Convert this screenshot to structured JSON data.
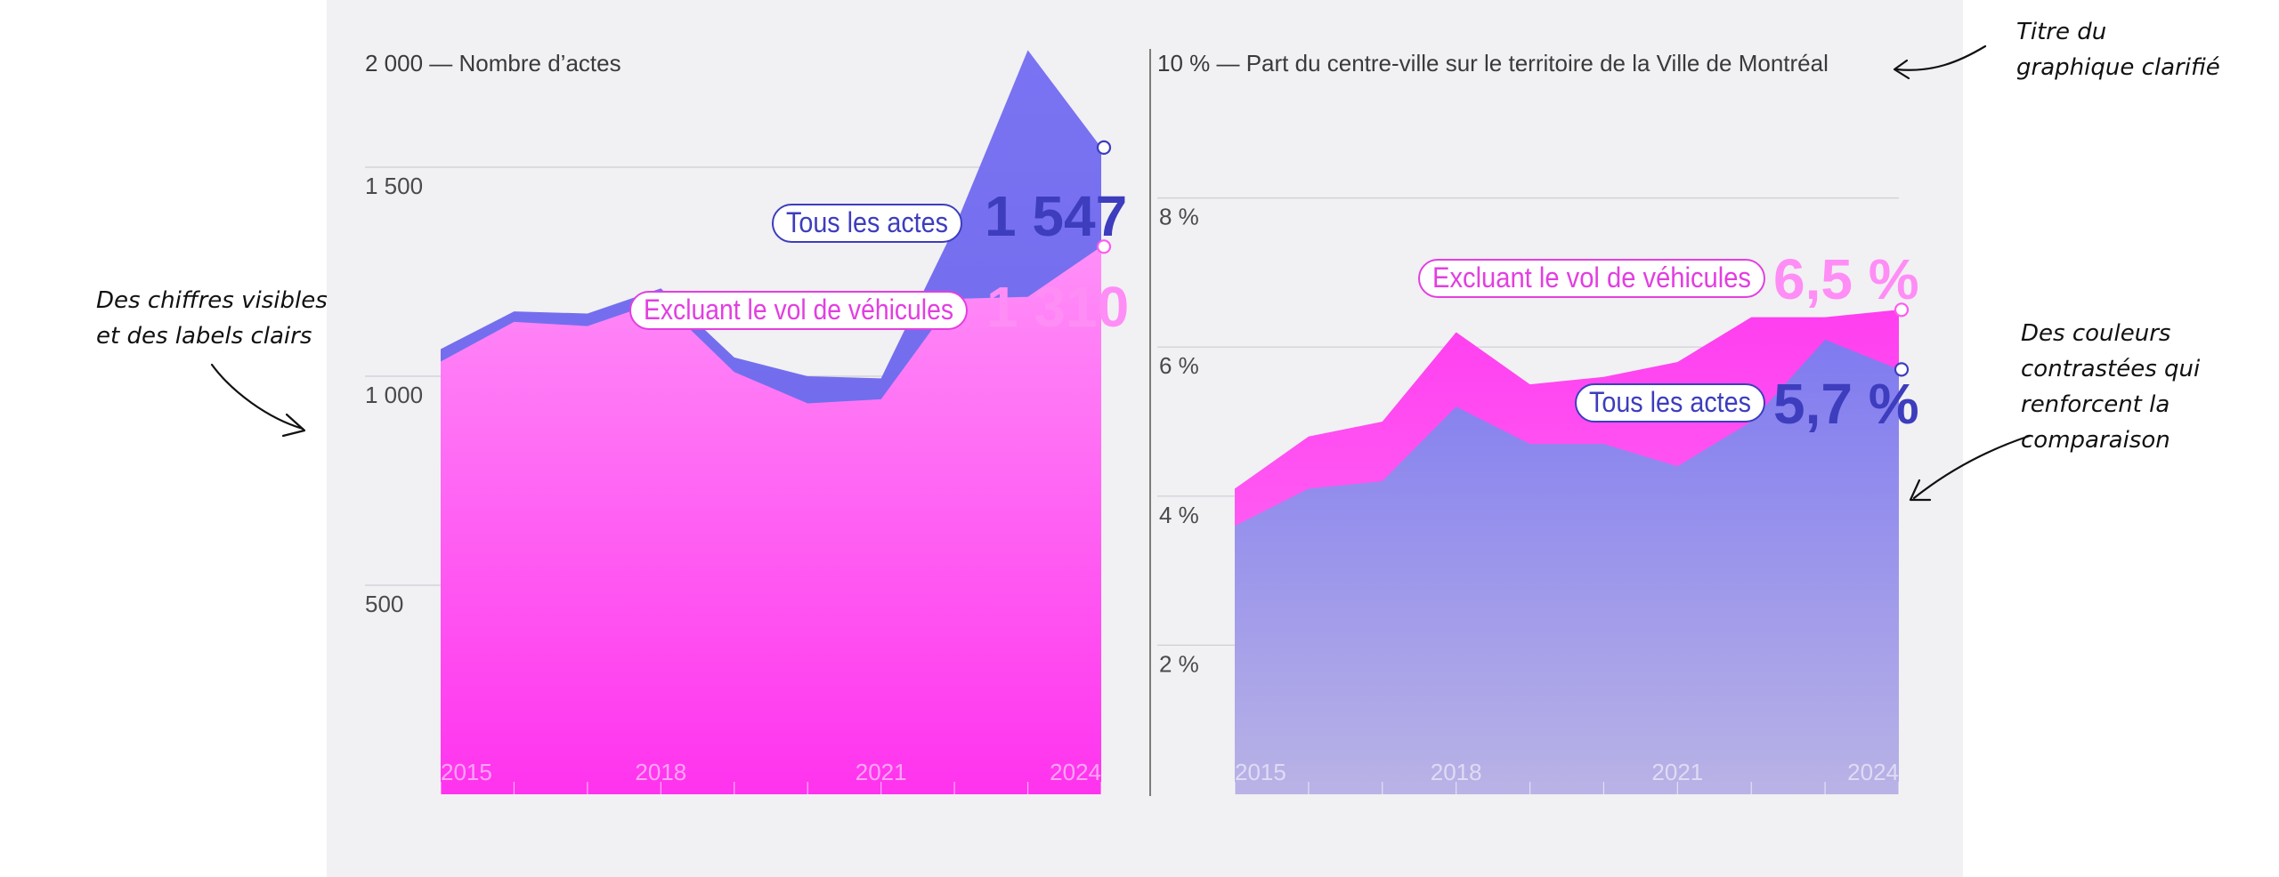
{
  "annotations": {
    "title_note": "Titre du\ngraphique clarifié",
    "labels_note": "Des chiffres visibles\net des labels clairs",
    "colors_note": "Des couleurs\ncontrastées qui\nrenforcent la\ncomparaison"
  },
  "colors": {
    "magenta": "#ff2ff0",
    "magenta_light": "#ff8df6",
    "violet": "#7f78f0",
    "violet_dark": "#3d3dbe",
    "label_pink": "#e23fe0",
    "grid": "#cfcdd6",
    "axis_text": "#4a4a4a"
  },
  "chart_data": [
    {
      "type": "area",
      "title": "2 000 — Nombre d’actes",
      "x": [
        2015,
        2016,
        2017,
        2018,
        2019,
        2020,
        2021,
        2022,
        2023,
        2024
      ],
      "x_tick_labels": [
        "2015",
        "2018",
        "2021",
        "2024"
      ],
      "y_ticks": [
        500,
        1000,
        1500
      ],
      "y_tick_labels": [
        "500",
        "1 000",
        "1 500"
      ],
      "ylim": [
        0,
        2000
      ],
      "grid": true,
      "series": [
        {
          "name": "Tous les actes",
          "values": [
            1065,
            1155,
            1150,
            1210,
            1045,
            1000,
            995,
            1355,
            1780,
            1547
          ],
          "end_label": "1 547"
        },
        {
          "name": "Excluant le vol de véhicules",
          "values": [
            1035,
            1130,
            1120,
            1180,
            1010,
            935,
            945,
            1185,
            1190,
            1310
          ],
          "end_label": "1 310"
        }
      ]
    },
    {
      "type": "area",
      "title": "10 % — Part du centre-ville sur le territoire de la Ville de Montréal",
      "x": [
        2015,
        2016,
        2017,
        2018,
        2019,
        2020,
        2021,
        2022,
        2023,
        2024
      ],
      "x_tick_labels": [
        "2015",
        "2018",
        "2021",
        "2024"
      ],
      "y_ticks": [
        2,
        4,
        6,
        8
      ],
      "y_tick_labels": [
        "2 %",
        "4 %",
        "6 %",
        "8 %"
      ],
      "ylim": [
        0,
        10
      ],
      "grid": true,
      "series": [
        {
          "name": "Excluant le vol de véhicules",
          "values": [
            4.1,
            4.8,
            5.0,
            6.2,
            5.5,
            5.6,
            5.8,
            6.4,
            6.4,
            6.5
          ],
          "end_label": "6,5 %"
        },
        {
          "name": "Tous les actes",
          "values": [
            3.6,
            4.1,
            4.2,
            5.2,
            4.7,
            4.7,
            4.4,
            5.0,
            6.1,
            5.7
          ],
          "end_label": "5,7 %"
        }
      ]
    }
  ]
}
